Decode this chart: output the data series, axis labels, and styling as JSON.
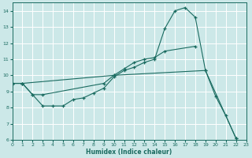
{
  "xlabel": "Humidex (Indice chaleur)",
  "bg_color": "#cce8e8",
  "line_color": "#1a6b60",
  "grid_color": "#b8d8d8",
  "line1_pts": [
    [
      0,
      9.5
    ],
    [
      1,
      9.5
    ],
    [
      2,
      8.8
    ],
    [
      3,
      8.1
    ],
    [
      4,
      8.1
    ],
    [
      5,
      8.1
    ],
    [
      6,
      8.5
    ],
    [
      7,
      8.6
    ],
    [
      8,
      8.9
    ],
    [
      9,
      9.2
    ],
    [
      10,
      9.9
    ],
    [
      11,
      10.3
    ],
    [
      12,
      10.5
    ],
    [
      13,
      10.8
    ],
    [
      14,
      11.0
    ],
    [
      15,
      12.9
    ],
    [
      16,
      14.0
    ],
    [
      17,
      14.2
    ],
    [
      18,
      13.6
    ],
    [
      19,
      10.3
    ],
    [
      20,
      8.7
    ],
    [
      21,
      7.5
    ],
    [
      22,
      6.1
    ]
  ],
  "line2_pts": [
    [
      0,
      9.5
    ],
    [
      1,
      9.5
    ],
    [
      2,
      8.8
    ],
    [
      3,
      8.8
    ],
    [
      9,
      9.5
    ],
    [
      10,
      10.0
    ],
    [
      11,
      10.4
    ],
    [
      12,
      10.8
    ],
    [
      13,
      11.0
    ],
    [
      14,
      11.1
    ],
    [
      15,
      11.5
    ],
    [
      18,
      11.8
    ]
  ],
  "line3_pts": [
    [
      0,
      9.5
    ],
    [
      1,
      9.5
    ],
    [
      10,
      10.0
    ],
    [
      19,
      10.3
    ],
    [
      22,
      6.1
    ]
  ],
  "xlim": [
    0,
    23
  ],
  "ylim": [
    6,
    14.5
  ],
  "yticks": [
    6,
    7,
    8,
    9,
    10,
    11,
    12,
    13,
    14
  ],
  "xticks": [
    0,
    1,
    2,
    3,
    4,
    5,
    6,
    7,
    8,
    9,
    10,
    11,
    12,
    13,
    14,
    15,
    16,
    17,
    18,
    19,
    20,
    21,
    22,
    23
  ]
}
